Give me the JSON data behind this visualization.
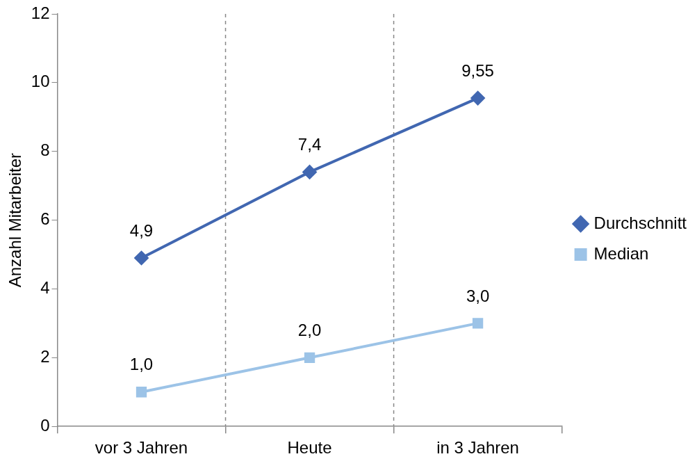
{
  "chart_data": {
    "type": "line",
    "ylabel": "Anzahl Mitarbeiter",
    "categories": [
      "vor 3 Jahren",
      "Heute",
      "in 3 Jahren"
    ],
    "ylim": [
      0,
      12
    ],
    "yticks": [
      0,
      2,
      4,
      6,
      8,
      10,
      12
    ],
    "grid": "x",
    "legend": "right",
    "series": [
      {
        "name": "Durchschnitt",
        "color": "#4167b1",
        "marker": "diamond",
        "values": [
          4.9,
          7.4,
          9.55
        ],
        "value_labels": [
          "4,9",
          "7,4",
          "9,55"
        ]
      },
      {
        "name": "Median",
        "color": "#9cc3e7",
        "marker": "square",
        "values": [
          1.0,
          2.0,
          3.0
        ],
        "value_labels": [
          "1,0",
          "2,0",
          "3,0"
        ]
      }
    ]
  }
}
